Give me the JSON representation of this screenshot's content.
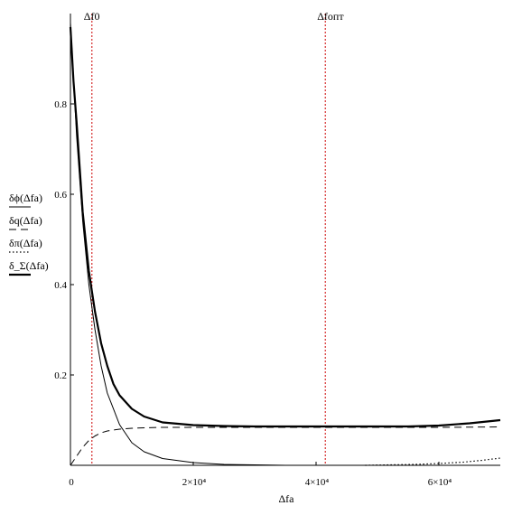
{
  "chart_data": {
    "type": "line",
    "xlabel": "Δfa",
    "ylabel_series": [
      "δϕ(Δfa)",
      "δq(Δfa)",
      "δπ(Δfa)",
      "δ_Σ(Δfa)"
    ],
    "xlim": [
      0,
      70000
    ],
    "ylim": [
      0,
      1.0
    ],
    "x_ticks": [
      {
        "value": 0,
        "label": "0"
      },
      {
        "value": 20000,
        "label": "2×10⁴"
      },
      {
        "value": 40000,
        "label": "4×10⁴"
      },
      {
        "value": 60000,
        "label": "6×10⁴"
      }
    ],
    "y_ticks": [
      {
        "value": 0.2,
        "label": "0.2"
      },
      {
        "value": 0.4,
        "label": "0.4"
      },
      {
        "value": 0.6,
        "label": "0.6"
      },
      {
        "value": 0.8,
        "label": "0.8"
      }
    ],
    "grid": false,
    "legend_position": "left",
    "vlines": [
      {
        "name": "Δf0",
        "x": 3500,
        "color": "#cc0000"
      },
      {
        "name": "Δfопт",
        "x": 41500,
        "color": "#cc0000"
      }
    ],
    "series": [
      {
        "name": "δϕ(Δfa)",
        "style": "thin-solid",
        "color": "#000000",
        "x": [
          0,
          1000,
          2000,
          3000,
          4000,
          5000,
          6000,
          8000,
          10000,
          12000,
          15000,
          20000,
          25000,
          30000,
          35000,
          40000,
          45000,
          50000,
          55000,
          60000,
          65000,
          70000
        ],
        "y": [
          0.98,
          0.73,
          0.54,
          0.4,
          0.3,
          0.22,
          0.16,
          0.09,
          0.05,
          0.03,
          0.015,
          0.006,
          0.002,
          0.001,
          0,
          0,
          0,
          0,
          0,
          0,
          0,
          0
        ]
      },
      {
        "name": "δq(Δfa)",
        "style": "dashed",
        "color": "#000000",
        "x": [
          0,
          1000,
          2000,
          3000,
          4000,
          5000,
          6000,
          8000,
          10000,
          12000,
          15000,
          20000,
          30000,
          40000,
          50000,
          60000,
          70000
        ],
        "y": [
          0,
          0.02,
          0.04,
          0.055,
          0.065,
          0.072,
          0.076,
          0.08,
          0.082,
          0.083,
          0.084,
          0.084,
          0.084,
          0.084,
          0.084,
          0.084,
          0.085
        ]
      },
      {
        "name": "δπ(Δfa)",
        "style": "dotted",
        "color": "#000000",
        "x": [
          48000,
          52000,
          56000,
          60000,
          64000,
          67000,
          70000
        ],
        "y": [
          0.0,
          0.001,
          0.002,
          0.004,
          0.007,
          0.011,
          0.016
        ]
      },
      {
        "name": "δ_Σ(Δfa)",
        "style": "thick-solid",
        "color": "#000000",
        "x": [
          0,
          500,
          1000,
          2000,
          3000,
          4000,
          5000,
          6000,
          7000,
          8000,
          10000,
          12000,
          15000,
          20000,
          25000,
          30000,
          40000,
          50000,
          55000,
          60000,
          65000,
          70000
        ],
        "y": [
          0.97,
          0.85,
          0.76,
          0.56,
          0.43,
          0.34,
          0.27,
          0.22,
          0.18,
          0.155,
          0.125,
          0.108,
          0.095,
          0.089,
          0.087,
          0.086,
          0.086,
          0.086,
          0.086,
          0.088,
          0.093,
          0.1
        ]
      }
    ]
  }
}
